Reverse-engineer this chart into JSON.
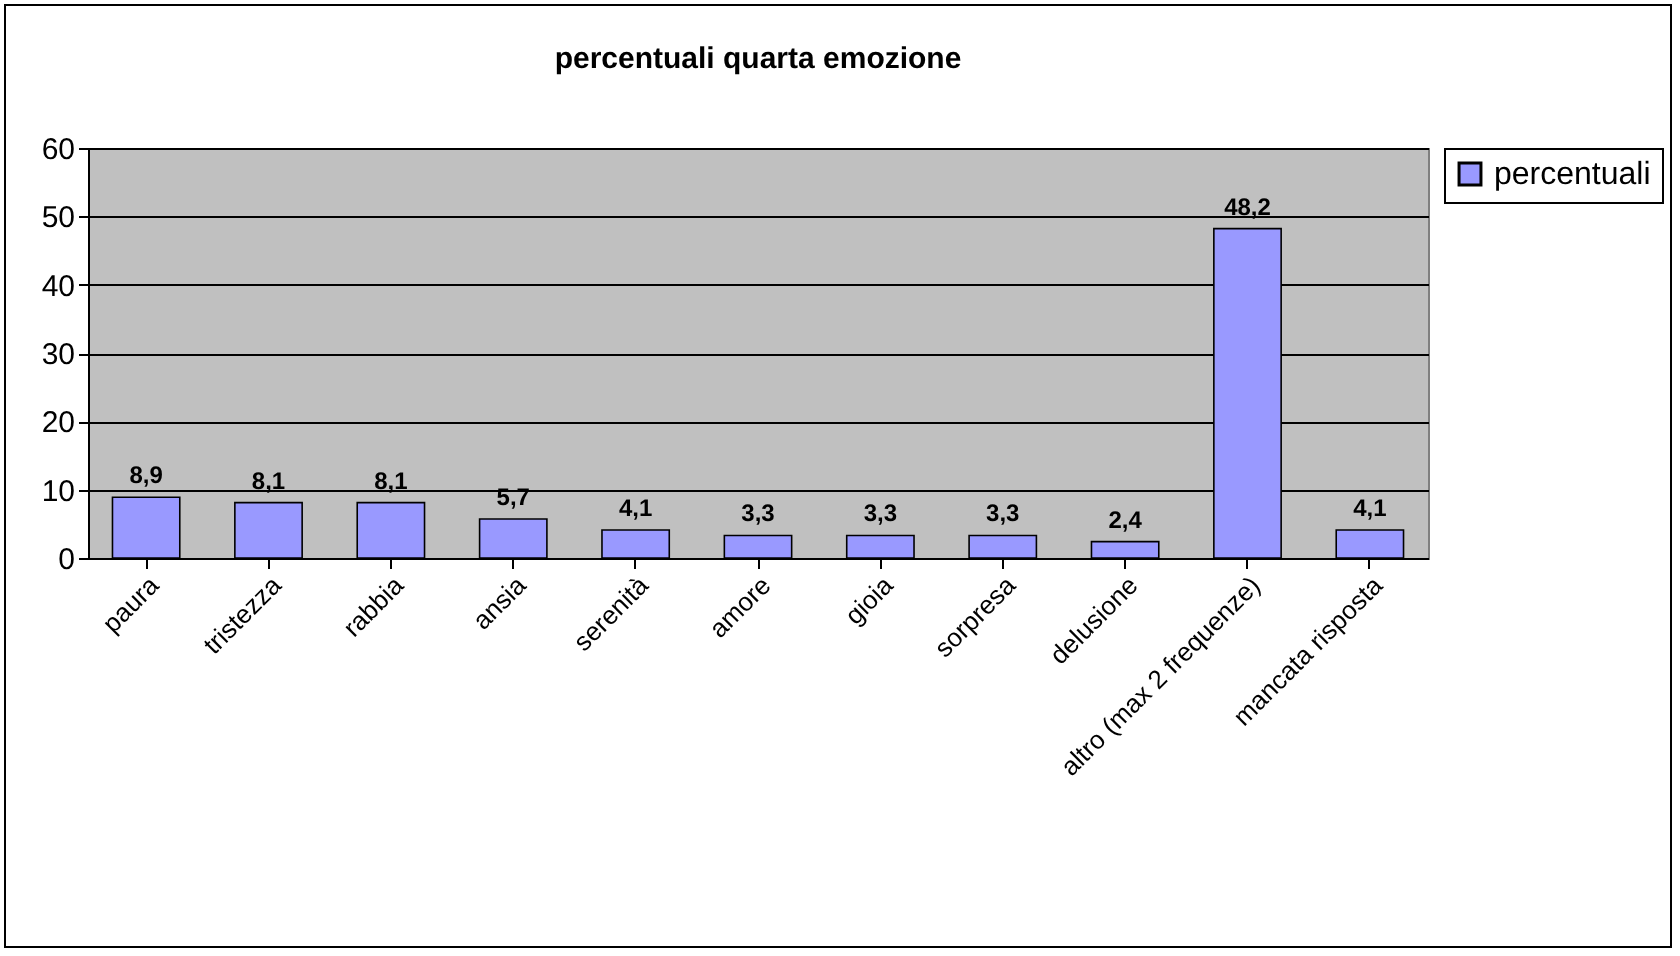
{
  "chart_data": {
    "type": "bar",
    "title": "percentuali quarta emozione",
    "categories": [
      "paura",
      "tristezza",
      "rabbia",
      "ansia",
      "serenità",
      "amore",
      "gioia",
      "sorpresa",
      "delusione",
      "altro (max 2 frequenze)",
      "mancata risposta"
    ],
    "series": [
      {
        "name": "percentuali",
        "color": "#9999ff",
        "values": [
          8.9,
          8.1,
          8.1,
          5.7,
          4.1,
          3.3,
          3.3,
          3.3,
          2.4,
          48.2,
          4.1
        ],
        "value_labels": [
          "8,9",
          "8,1",
          "8,1",
          "5,7",
          "4,1",
          "3,3",
          "3,3",
          "3,3",
          "2,4",
          "48,2",
          "4,1"
        ]
      }
    ],
    "ylim": [
      0,
      60
    ],
    "yticks": [
      0,
      10,
      20,
      30,
      40,
      50,
      60
    ],
    "grid": "y",
    "legend": "right"
  }
}
